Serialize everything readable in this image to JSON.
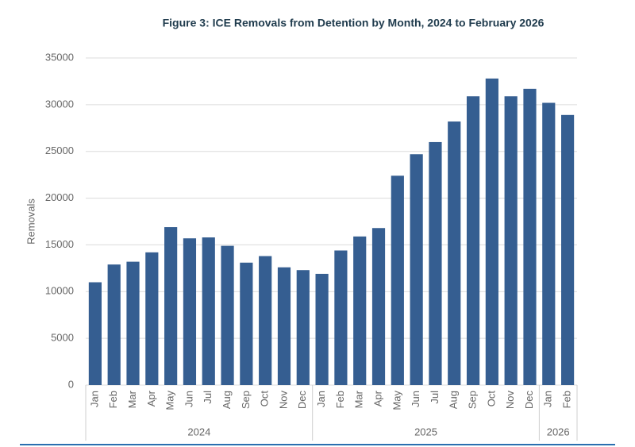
{
  "chart_data": {
    "type": "bar",
    "title": "Figure 3: ICE Removals from Detention by Month, 2024 to February 2026",
    "y_label": "Removals",
    "category_groups": [
      {
        "label": "2024",
        "categories": [
          "Jan",
          "Feb",
          "Mar",
          "Apr",
          "May",
          "Jun",
          "Jul",
          "Aug",
          "Sep",
          "Oct",
          "Nov",
          "Dec"
        ]
      },
      {
        "label": "2025",
        "categories": [
          "Jan",
          "Feb",
          "Mar",
          "Apr",
          "May",
          "Jun",
          "Jul",
          "Aug",
          "Sep",
          "Oct",
          "Nov",
          "Dec"
        ]
      },
      {
        "label": "2026",
        "categories": [
          "Jan",
          "Feb"
        ]
      }
    ],
    "values": [
      11000,
      12900,
      13200,
      14200,
      16900,
      15700,
      15800,
      14900,
      13100,
      13800,
      12600,
      12300,
      11900,
      14400,
      15900,
      16800,
      22400,
      24700,
      26000,
      28200,
      30900,
      32800,
      30900,
      31700,
      30200,
      28900
    ],
    "color": "#355e91",
    "ylim": [
      0,
      35000
    ],
    "yticks": [
      0,
      5000,
      10000,
      15000,
      20000,
      25000,
      30000,
      35000
    ],
    "grid": true
  }
}
